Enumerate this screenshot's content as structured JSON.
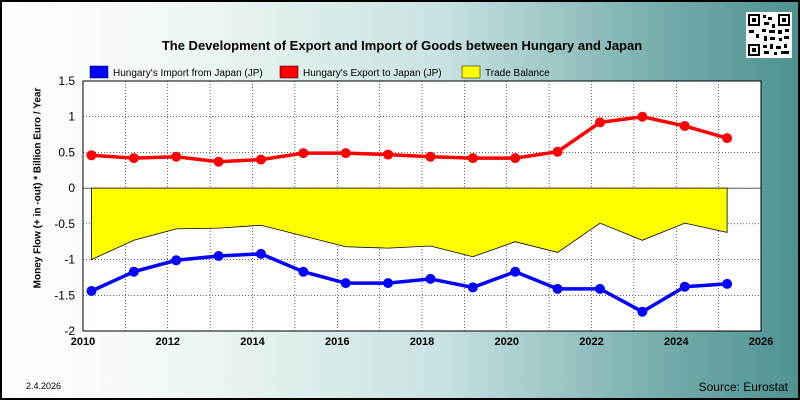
{
  "title": "The Development of Export and Import of Goods between Hungary and Japan",
  "date_label": "2.4.2026",
  "source_label": "Source: Eurostat",
  "colors": {
    "import": "#0000ff",
    "export": "#ff0000",
    "balance": "#ffff00",
    "plot_bg": "#ffffff"
  },
  "chart_data": {
    "type": "line",
    "title": "The Development of Export and Import of Goods between Hungary and Japan",
    "xlabel": "",
    "ylabel": "Money Flow (+ in -out) * Billion Euro / Year",
    "xlim": [
      2010,
      2026
    ],
    "ylim": [
      -2,
      1.5
    ],
    "x_ticks": [
      2010,
      2012,
      2014,
      2016,
      2018,
      2020,
      2022,
      2024,
      2026
    ],
    "y_ticks": [
      1.5,
      1,
      0.5,
      0,
      -0.5,
      -1,
      -1.5,
      -2
    ],
    "grid": true,
    "legend_position": "top",
    "x": [
      2010.2,
      2011.2,
      2012.2,
      2013.2,
      2014.2,
      2015.2,
      2016.2,
      2017.2,
      2018.2,
      2019.2,
      2020.2,
      2021.2,
      2022.2,
      2023.2,
      2024.2,
      2025.2
    ],
    "series": [
      {
        "name": "Hungary's Import from Japan (JP)",
        "kind": "line",
        "color": "#0000ff",
        "values": [
          -1.44,
          -1.17,
          -1.01,
          -0.95,
          -0.92,
          -1.17,
          -1.33,
          -1.33,
          -1.27,
          -1.39,
          -1.17,
          -1.41,
          -1.41,
          -1.73,
          -1.38,
          -1.34
        ]
      },
      {
        "name": "Hungary's Export to Japan (JP)",
        "kind": "line",
        "color": "#ff0000",
        "values": [
          0.46,
          0.42,
          0.44,
          0.37,
          0.4,
          0.49,
          0.49,
          0.47,
          0.44,
          0.42,
          0.42,
          0.51,
          0.92,
          1.0,
          0.87,
          0.7
        ]
      },
      {
        "name": "Trade Balance",
        "kind": "area",
        "color": "#ffff00",
        "values": [
          -1.0,
          -0.73,
          -0.57,
          -0.56,
          -0.52,
          -0.67,
          -0.82,
          -0.84,
          -0.81,
          -0.96,
          -0.75,
          -0.9,
          -0.49,
          -0.73,
          -0.49,
          -0.62
        ]
      }
    ]
  }
}
